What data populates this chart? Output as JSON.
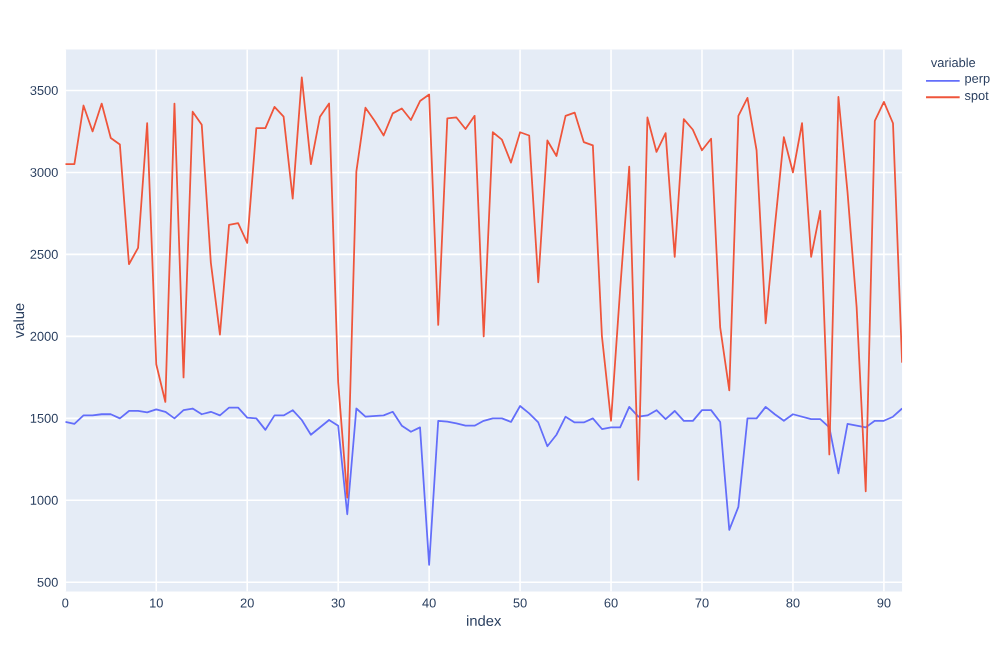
{
  "chart_data": {
    "type": "line",
    "xlabel": "index",
    "ylabel": "value",
    "legend_title": "variable",
    "legend": "top right",
    "grid": true,
    "x": [
      0,
      1,
      2,
      3,
      4,
      5,
      6,
      7,
      8,
      9,
      10,
      11,
      12,
      13,
      14,
      15,
      16,
      17,
      18,
      19,
      20,
      21,
      22,
      23,
      24,
      25,
      26,
      27,
      28,
      29,
      30,
      31,
      32,
      33,
      34,
      35,
      36,
      37,
      38,
      39,
      40,
      41,
      42,
      43,
      44,
      45,
      46,
      47,
      48,
      49,
      50,
      51,
      52,
      53,
      54,
      55,
      56,
      57,
      58,
      59,
      60,
      61,
      62,
      63,
      64,
      65,
      66,
      67,
      68,
      69,
      70,
      71,
      72,
      73,
      74,
      75,
      76,
      77,
      78,
      79,
      80,
      81,
      82,
      83,
      84,
      85,
      86,
      87,
      88,
      89,
      90,
      91,
      92
    ],
    "xlim": [
      0,
      92
    ],
    "xticks": [
      0,
      10,
      20,
      30,
      40,
      50,
      60,
      70,
      80,
      90
    ],
    "ylim": [
      444,
      3750
    ],
    "yticks": [
      500,
      1000,
      1500,
      2000,
      2500,
      3000,
      3500
    ],
    "series": [
      {
        "name": "perp",
        "color": "#636efa",
        "values": [
          1478,
          1466,
          1518,
          1518,
          1525,
          1525,
          1500,
          1545,
          1545,
          1537,
          1555,
          1540,
          1500,
          1550,
          1560,
          1525,
          1540,
          1518,
          1565,
          1565,
          1505,
          1500,
          1430,
          1518,
          1518,
          1550,
          1490,
          1400,
          1445,
          1490,
          1455,
          915,
          1560,
          1510,
          1514,
          1518,
          1540,
          1455,
          1418,
          1445,
          606,
          1485,
          1480,
          1470,
          1455,
          1455,
          1485,
          1500,
          1500,
          1478,
          1575,
          1530,
          1475,
          1330,
          1400,
          1510,
          1475,
          1475,
          1500,
          1435,
          1445,
          1445,
          1570,
          1510,
          1518,
          1550,
          1495,
          1545,
          1485,
          1485,
          1550,
          1550,
          1478,
          820,
          960,
          1500,
          1500,
          1570,
          1525,
          1485,
          1525,
          1510,
          1495,
          1495,
          1445,
          1165,
          1466,
          1455,
          1445,
          1485,
          1485,
          1510,
          1560
        ]
      },
      {
        "name": "spot",
        "color": "#ef553b",
        "values": [
          3050,
          3050,
          3408,
          3250,
          3420,
          3210,
          3170,
          2440,
          2540,
          3300,
          1830,
          1600,
          3420,
          1750,
          3370,
          3290,
          2450,
          2010,
          2680,
          2690,
          2570,
          3270,
          3270,
          3400,
          3340,
          2840,
          3580,
          3050,
          3340,
          3420,
          1720,
          1016,
          3005,
          3395,
          3315,
          3225,
          3360,
          3390,
          3320,
          3435,
          3475,
          2070,
          3330,
          3335,
          3265,
          3345,
          2000,
          3245,
          3200,
          3060,
          3245,
          3225,
          2330,
          3195,
          3100,
          3345,
          3365,
          3185,
          3165,
          2000,
          1485,
          2285,
          3035,
          1125,
          3335,
          3125,
          3240,
          2485,
          3325,
          3260,
          3135,
          3205,
          2055,
          1670,
          3345,
          3455,
          3135,
          2080,
          2665,
          3215,
          3000,
          3300,
          2485,
          2765,
          1280,
          3460,
          2880,
          2180,
          1055,
          3315,
          3430,
          3300,
          1840
        ]
      }
    ]
  }
}
